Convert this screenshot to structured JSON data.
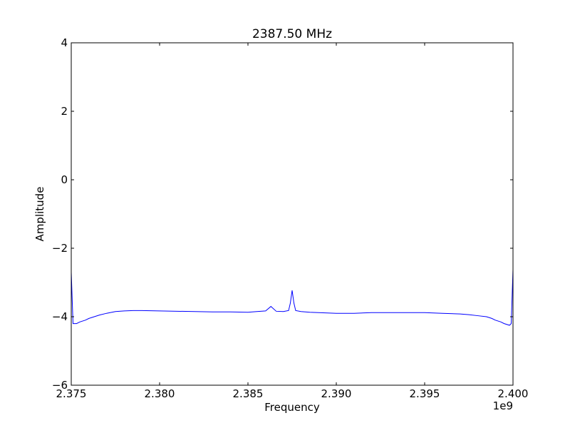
{
  "chart_data": {
    "type": "line",
    "title": "2387.50 MHz",
    "xlabel": "Frequency",
    "ylabel": "Amplitude",
    "x_offset_label": "1e9",
    "xlim": [
      2.375,
      2.4
    ],
    "ylim": [
      -6,
      4
    ],
    "x_ticks": [
      2.375,
      2.38,
      2.385,
      2.39,
      2.395,
      2.4
    ],
    "x_tick_labels": [
      "2.375",
      "2.380",
      "2.385",
      "2.390",
      "2.395",
      "2.400"
    ],
    "y_ticks": [
      -6,
      -4,
      -2,
      0,
      2,
      4
    ],
    "y_tick_labels": [
      "−6",
      "−4",
      "−2",
      "0",
      "2",
      "4"
    ],
    "grid": false,
    "line_color": "#0000ff",
    "series": [
      {
        "x": [
          2.375,
          2.3751,
          2.3753,
          2.3755,
          2.3758,
          2.376,
          2.3763,
          2.3766,
          2.377,
          2.3775,
          2.378,
          2.3785,
          2.379,
          2.38,
          2.381,
          2.382,
          2.383,
          2.384,
          2.385,
          2.3855,
          2.386,
          2.3863,
          2.3866,
          2.387,
          2.3873,
          2.3874,
          2.3875,
          2.3876,
          2.3877,
          2.388,
          2.3885,
          2.389,
          2.39,
          2.391,
          2.392,
          2.393,
          2.394,
          2.395,
          2.396,
          2.397,
          2.3975,
          2.398,
          2.3985,
          2.3988,
          2.399,
          2.3993,
          2.3995,
          2.3998,
          2.3999,
          2.4
        ],
        "y": [
          -2.7,
          -4.2,
          -4.2,
          -4.15,
          -4.1,
          -4.05,
          -4.0,
          -3.95,
          -3.9,
          -3.85,
          -3.83,
          -3.82,
          -3.82,
          -3.83,
          -3.84,
          -3.85,
          -3.86,
          -3.86,
          -3.87,
          -3.85,
          -3.83,
          -3.7,
          -3.84,
          -3.85,
          -3.82,
          -3.6,
          -3.23,
          -3.6,
          -3.82,
          -3.85,
          -3.87,
          -3.88,
          -3.9,
          -3.9,
          -3.88,
          -3.88,
          -3.88,
          -3.88,
          -3.9,
          -3.92,
          -3.94,
          -3.97,
          -4.0,
          -4.05,
          -4.1,
          -4.15,
          -4.2,
          -4.25,
          -4.2,
          -2.62
        ]
      }
    ]
  }
}
